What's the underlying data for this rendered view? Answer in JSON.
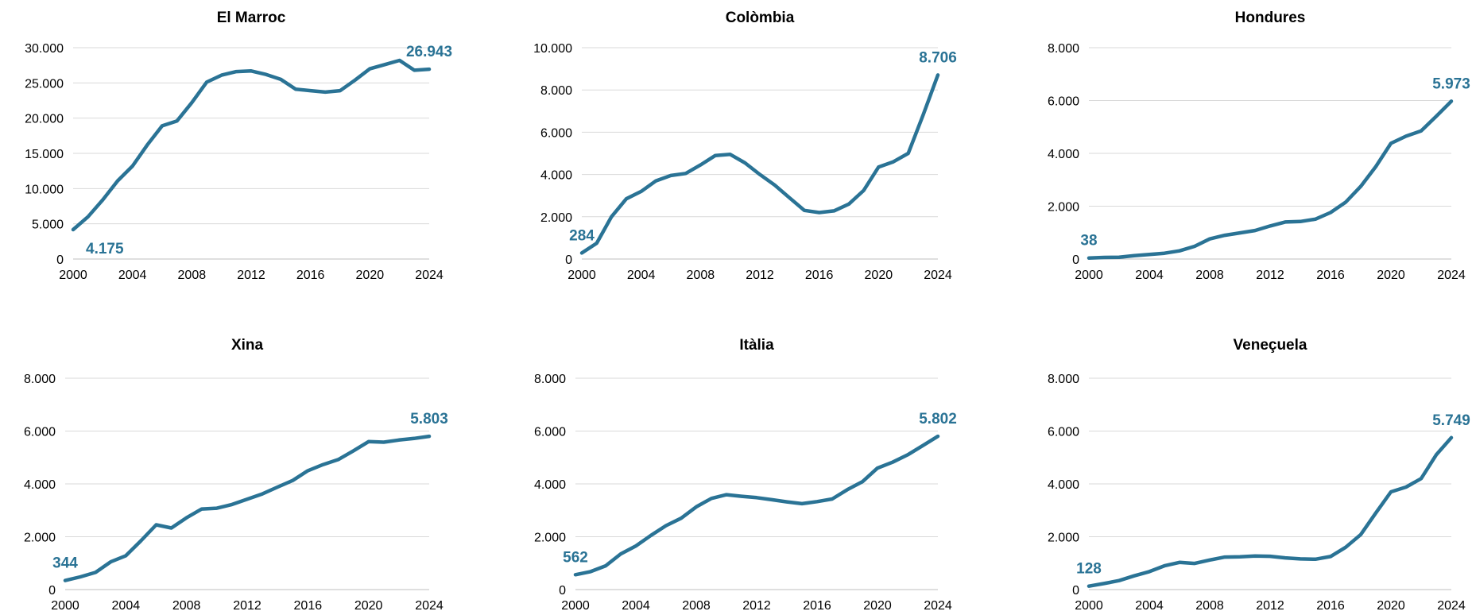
{
  "style": {
    "line_color": "#2a7395",
    "label_color": "#2a7395",
    "grid_color": "#d9d9d9"
  },
  "chart_data": [
    {
      "type": "line",
      "title": "El Marroc",
      "xlabel": "",
      "ylabel": "",
      "xlim": [
        2000,
        2024
      ],
      "xticks": [
        2000,
        2004,
        2008,
        2012,
        2016,
        2020,
        2024
      ],
      "xtick_labels": [
        "2000",
        "2004",
        "2008",
        "2012",
        "2016",
        "2020",
        "2024"
      ],
      "ylim": [
        0,
        30000
      ],
      "yticks": [
        0,
        5000,
        10000,
        15000,
        20000,
        25000,
        30000
      ],
      "ytick_labels": [
        "0",
        "5.000",
        "10.000",
        "15.000",
        "20.000",
        "25.000",
        "30.000"
      ],
      "grid": true,
      "x": [
        2000,
        2001,
        2002,
        2003,
        2004,
        2005,
        2006,
        2007,
        2008,
        2009,
        2010,
        2011,
        2012,
        2013,
        2014,
        2015,
        2016,
        2017,
        2018,
        2019,
        2020,
        2021,
        2022,
        2023,
        2024
      ],
      "values": [
        4175,
        6000,
        8400,
        11100,
        13200,
        16200,
        18900,
        19600,
        22200,
        25100,
        26100,
        26600,
        26700,
        26200,
        25500,
        24100,
        23900,
        23700,
        23900,
        25400,
        27000,
        27600,
        28200,
        26800,
        26943
      ],
      "labels": [
        {
          "x": 2000,
          "y": 4175,
          "text": "4.175",
          "position": "below-right"
        },
        {
          "x": 2024,
          "y": 26943,
          "text": "26.943",
          "position": "above"
        }
      ]
    },
    {
      "type": "line",
      "title": "Colòmbia",
      "xlabel": "",
      "ylabel": "",
      "xlim": [
        2000,
        2024
      ],
      "xticks": [
        2000,
        2004,
        2008,
        2012,
        2016,
        2020,
        2024
      ],
      "xtick_labels": [
        "2000",
        "2004",
        "2008",
        "2012",
        "2016",
        "2020",
        "2024"
      ],
      "ylim": [
        0,
        10000
      ],
      "yticks": [
        0,
        2000,
        4000,
        6000,
        8000,
        10000
      ],
      "ytick_labels": [
        "0",
        "2.000",
        "4.000",
        "6.000",
        "8.000",
        "10.000"
      ],
      "grid": true,
      "x": [
        2000,
        2001,
        2002,
        2003,
        2004,
        2005,
        2006,
        2007,
        2008,
        2009,
        2010,
        2011,
        2012,
        2013,
        2014,
        2015,
        2016,
        2017,
        2018,
        2019,
        2020,
        2021,
        2022,
        2023,
        2024
      ],
      "values": [
        284,
        750,
        2000,
        2850,
        3200,
        3700,
        3950,
        4050,
        4450,
        4900,
        4950,
        4550,
        4000,
        3500,
        2900,
        2300,
        2200,
        2280,
        2600,
        3250,
        4350,
        4600,
        5000,
        6800,
        8706
      ],
      "labels": [
        {
          "x": 2000,
          "y": 284,
          "text": "284",
          "position": "above"
        },
        {
          "x": 2024,
          "y": 8706,
          "text": "8.706",
          "position": "above"
        }
      ]
    },
    {
      "type": "line",
      "title": "Hondures",
      "xlabel": "",
      "ylabel": "",
      "xlim": [
        2000,
        2024
      ],
      "xticks": [
        2000,
        2004,
        2008,
        2012,
        2016,
        2020,
        2024
      ],
      "xtick_labels": [
        "2000",
        "2004",
        "2008",
        "2012",
        "2016",
        "2020",
        "2024"
      ],
      "ylim": [
        0,
        8000
      ],
      "yticks": [
        0,
        2000,
        4000,
        6000,
        8000
      ],
      "ytick_labels": [
        "0",
        "2.000",
        "4.000",
        "6.000",
        "8.000"
      ],
      "grid": true,
      "x": [
        2000,
        2001,
        2002,
        2003,
        2004,
        2005,
        2006,
        2007,
        2008,
        2009,
        2010,
        2011,
        2012,
        2013,
        2014,
        2015,
        2016,
        2017,
        2018,
        2019,
        2020,
        2021,
        2022,
        2023,
        2024
      ],
      "values": [
        38,
        60,
        70,
        130,
        170,
        220,
        310,
        480,
        760,
        900,
        990,
        1080,
        1250,
        1400,
        1420,
        1510,
        1760,
        2150,
        2750,
        3500,
        4380,
        4650,
        4850,
        5400,
        5973
      ],
      "labels": [
        {
          "x": 2000,
          "y": 38,
          "text": "38",
          "position": "above"
        },
        {
          "x": 2024,
          "y": 5973,
          "text": "5.973",
          "position": "above"
        }
      ]
    },
    {
      "type": "line",
      "title": "Xina",
      "xlabel": "",
      "ylabel": "",
      "xlim": [
        2000,
        2024
      ],
      "xticks": [
        2000,
        2004,
        2008,
        2012,
        2016,
        2020,
        2024
      ],
      "xtick_labels": [
        "2000",
        "2004",
        "2008",
        "2012",
        "2016",
        "2020",
        "2024"
      ],
      "ylim": [
        0,
        8000
      ],
      "yticks": [
        0,
        2000,
        4000,
        6000,
        8000
      ],
      "ytick_labels": [
        "0",
        "2.000",
        "4.000",
        "6.000",
        "8.000"
      ],
      "grid": true,
      "x": [
        2000,
        2001,
        2002,
        2003,
        2004,
        2005,
        2006,
        2007,
        2008,
        2009,
        2010,
        2011,
        2012,
        2013,
        2014,
        2015,
        2016,
        2017,
        2018,
        2019,
        2020,
        2021,
        2022,
        2023,
        2024
      ],
      "values": [
        344,
        480,
        650,
        1050,
        1280,
        1850,
        2450,
        2330,
        2720,
        3050,
        3080,
        3220,
        3420,
        3620,
        3880,
        4130,
        4500,
        4730,
        4920,
        5250,
        5600,
        5580,
        5660,
        5720,
        5803
      ],
      "labels": [
        {
          "x": 2000,
          "y": 344,
          "text": "344",
          "position": "above"
        },
        {
          "x": 2024,
          "y": 5803,
          "text": "5.803",
          "position": "above"
        }
      ]
    },
    {
      "type": "line",
      "title": "Itàlia",
      "xlabel": "",
      "ylabel": "",
      "xlim": [
        2000,
        2024
      ],
      "xticks": [
        2000,
        2004,
        2008,
        2012,
        2016,
        2020,
        2024
      ],
      "xtick_labels": [
        "2000",
        "2004",
        "2008",
        "2012",
        "2016",
        "2020",
        "2024"
      ],
      "ylim": [
        0,
        8000
      ],
      "yticks": [
        0,
        2000,
        4000,
        6000,
        8000
      ],
      "ytick_labels": [
        "0",
        "2.000",
        "4.000",
        "6.000",
        "8.000"
      ],
      "grid": true,
      "x": [
        2000,
        2001,
        2002,
        2003,
        2004,
        2005,
        2006,
        2007,
        2008,
        2009,
        2010,
        2011,
        2012,
        2013,
        2014,
        2015,
        2016,
        2017,
        2018,
        2019,
        2020,
        2021,
        2022,
        2023,
        2024
      ],
      "values": [
        562,
        680,
        900,
        1350,
        1650,
        2050,
        2420,
        2700,
        3130,
        3450,
        3590,
        3530,
        3480,
        3400,
        3320,
        3250,
        3330,
        3430,
        3780,
        4080,
        4600,
        4820,
        5100,
        5450,
        5802
      ],
      "labels": [
        {
          "x": 2000,
          "y": 562,
          "text": "562",
          "position": "above"
        },
        {
          "x": 2024,
          "y": 5802,
          "text": "5.802",
          "position": "above"
        }
      ]
    },
    {
      "type": "line",
      "title": "Veneçuela",
      "xlabel": "",
      "ylabel": "",
      "xlim": [
        2000,
        2024
      ],
      "xticks": [
        2000,
        2004,
        2008,
        2012,
        2016,
        2020,
        2024
      ],
      "xtick_labels": [
        "2000",
        "2004",
        "2008",
        "2012",
        "2016",
        "2020",
        "2024"
      ],
      "ylim": [
        0,
        8000
      ],
      "yticks": [
        0,
        2000,
        4000,
        6000,
        8000
      ],
      "ytick_labels": [
        "0",
        "2.000",
        "4.000",
        "6.000",
        "8.000"
      ],
      "grid": true,
      "x": [
        2000,
        2001,
        2002,
        2003,
        2004,
        2005,
        2006,
        2007,
        2008,
        2009,
        2010,
        2011,
        2012,
        2013,
        2014,
        2015,
        2016,
        2017,
        2018,
        2019,
        2020,
        2021,
        2022,
        2023,
        2024
      ],
      "values": [
        128,
        230,
        340,
        520,
        680,
        900,
        1030,
        990,
        1120,
        1230,
        1240,
        1270,
        1260,
        1200,
        1160,
        1150,
        1250,
        1600,
        2080,
        2900,
        3700,
        3880,
        4200,
        5100,
        5749
      ],
      "labels": [
        {
          "x": 2000,
          "y": 128,
          "text": "128",
          "position": "above"
        },
        {
          "x": 2024,
          "y": 5749,
          "text": "5.749",
          "position": "above"
        }
      ]
    }
  ]
}
